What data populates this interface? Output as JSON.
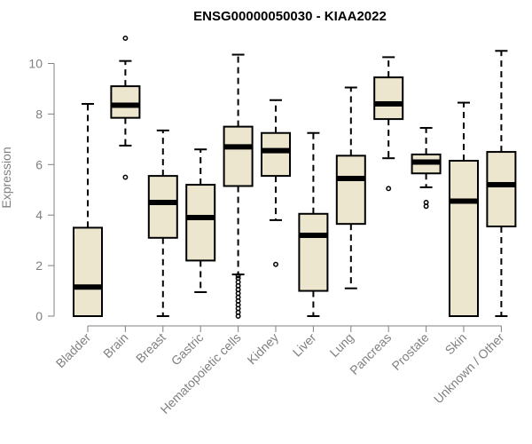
{
  "chart_data": {
    "type": "boxplot",
    "title": "ENSG00000050030 - KIAA2022",
    "xlabel": "",
    "ylabel": "Expression",
    "ylim": [
      0,
      11
    ],
    "yticks": [
      0,
      2,
      4,
      6,
      8,
      10
    ],
    "colors": {
      "box_fill": "#EDE6CF",
      "stroke": "#000000",
      "axis": "#808080"
    },
    "categories": [
      "Bladder",
      "Brain",
      "Breast",
      "Gastric",
      "Hematopoietic cells",
      "Kidney",
      "Liver",
      "Lung",
      "Pancreas",
      "Prostate",
      "Skin",
      "Unknown / Other"
    ],
    "boxes": [
      {
        "min": 0,
        "q1": 0,
        "median": 1.15,
        "q3": 3.5,
        "max": 8.4,
        "outliers": []
      },
      {
        "min": 6.75,
        "q1": 7.85,
        "median": 8.35,
        "q3": 9.1,
        "max": 10.1,
        "outliers": [
          11.0,
          5.5
        ]
      },
      {
        "min": 0,
        "q1": 3.1,
        "median": 4.5,
        "q3": 5.55,
        "max": 7.35,
        "outliers": []
      },
      {
        "min": 0.95,
        "q1": 2.2,
        "median": 3.9,
        "q3": 5.2,
        "max": 6.6,
        "outliers": []
      },
      {
        "min": 1.65,
        "q1": 5.15,
        "median": 6.7,
        "q3": 7.5,
        "max": 10.35,
        "outliers": [
          0.0,
          0.15,
          0.3,
          0.45,
          0.6,
          0.75,
          0.9,
          1.05,
          1.2,
          1.35,
          1.5,
          1.6
        ]
      },
      {
        "min": 3.8,
        "q1": 5.55,
        "median": 6.55,
        "q3": 7.25,
        "max": 8.55,
        "outliers": [
          2.05
        ]
      },
      {
        "min": 0,
        "q1": 1.0,
        "median": 3.2,
        "q3": 4.05,
        "max": 7.25,
        "outliers": []
      },
      {
        "min": 1.1,
        "q1": 3.65,
        "median": 5.45,
        "q3": 6.35,
        "max": 9.05,
        "outliers": []
      },
      {
        "min": 6.25,
        "q1": 7.8,
        "median": 8.4,
        "q3": 9.45,
        "max": 10.25,
        "outliers": [
          5.05
        ]
      },
      {
        "min": 5.1,
        "q1": 5.65,
        "median": 6.1,
        "q3": 6.4,
        "max": 7.45,
        "outliers": [
          4.35,
          4.5
        ]
      },
      {
        "min": 0,
        "q1": 0,
        "median": 4.55,
        "q3": 6.15,
        "max": 8.45,
        "outliers": []
      },
      {
        "min": 0,
        "q1": 3.55,
        "median": 5.2,
        "q3": 6.5,
        "max": 10.5,
        "outliers": []
      }
    ]
  }
}
